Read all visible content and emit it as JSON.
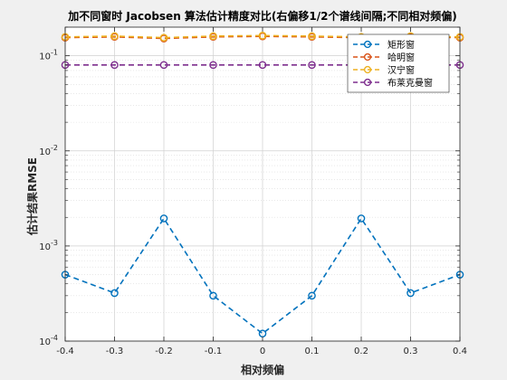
{
  "chart_data": {
    "type": "line",
    "title": "加不同窗时 Jacobsen 算法估计精度对比(右偏移1/2个谱线间隔;不同相对频偏)",
    "xlabel": "相对频偏",
    "ylabel": "估计结果RMSE",
    "xlim": [
      -0.4,
      0.4
    ],
    "ylim": [
      0.0001,
      0.2
    ],
    "y_scale": "log",
    "x_ticks": [
      "-0.4",
      "-0.3",
      "-0.2",
      "-0.1",
      "0",
      "0.1",
      "0.2",
      "0.3",
      "0.4"
    ],
    "y_ticks": [
      {
        "base": "10",
        "exp": "-4"
      },
      {
        "base": "10",
        "exp": "-3"
      },
      {
        "base": "10",
        "exp": "-2"
      },
      {
        "base": "10",
        "exp": "-1"
      }
    ],
    "grid": true,
    "minor_grid": true,
    "legend_position": "top-right",
    "x": [
      -0.4,
      -0.3,
      -0.2,
      -0.1,
      0,
      0.1,
      0.2,
      0.3,
      0.4
    ],
    "series": [
      {
        "name": "矩形窗",
        "color": "#0072BD",
        "values": [
          0.0005,
          0.00032,
          0.00195,
          0.0003,
          0.00012,
          0.0003,
          0.00195,
          0.00032,
          0.0005
        ]
      },
      {
        "name": "哈明窗",
        "color": "#D95319",
        "values": [
          0.155,
          0.158,
          0.152,
          0.158,
          0.16,
          0.158,
          0.155,
          0.158,
          0.155
        ]
      },
      {
        "name": "汉宁窗",
        "color": "#EDB120",
        "values": [
          0.158,
          0.161,
          0.155,
          0.161,
          0.163,
          0.161,
          0.158,
          0.161,
          0.158
        ]
      },
      {
        "name": "布莱克曼窗",
        "color": "#7E2F8E",
        "values": [
          0.08,
          0.08,
          0.08,
          0.08,
          0.08,
          0.08,
          0.08,
          0.08,
          0.08
        ]
      }
    ]
  }
}
